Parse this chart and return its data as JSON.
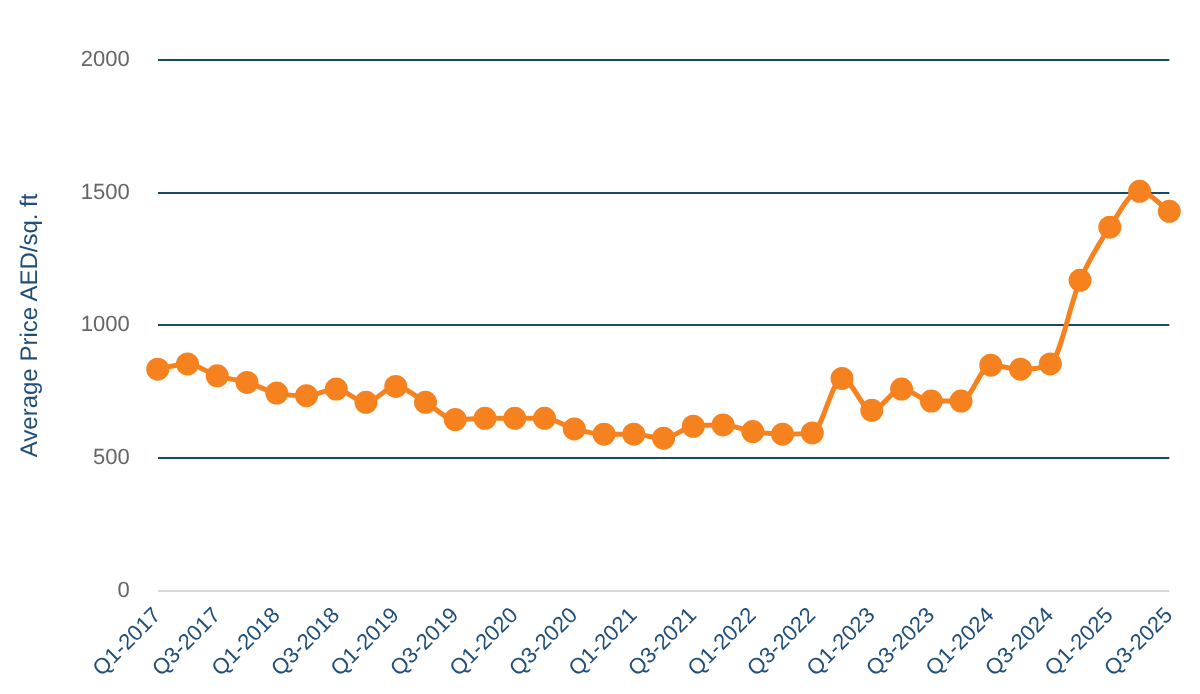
{
  "chart_data": {
    "type": "line",
    "ylabel": "Average Price AED/sq. ft",
    "categories": [
      "Q1-2017",
      null,
      "Q3-2017",
      null,
      "Q1-2018",
      null,
      "Q3-2018",
      null,
      "Q1-2019",
      null,
      "Q3-2019",
      null,
      "Q1-2020",
      null,
      "Q3-2020",
      null,
      "Q1-2021",
      null,
      "Q3-2021",
      null,
      "Q1-2022",
      null,
      "Q3-2022",
      null,
      "Q1-2023",
      null,
      "Q3-2023",
      null,
      "Q1-2024",
      null,
      "Q3-2024",
      null,
      "Q1-2025",
      null,
      "Q3-2025"
    ],
    "series": [
      {
        "color": "#f5821f",
        "values": [
          835,
          855,
          810,
          785,
          745,
          735,
          760,
          710,
          770,
          710,
          645,
          650,
          650,
          650,
          610,
          590,
          590,
          575,
          620,
          625,
          600,
          590,
          595,
          800,
          680,
          760,
          715,
          715,
          850,
          835,
          855,
          1170,
          1370,
          1505,
          1430
        ]
      }
    ],
    "ylim": [
      0,
      2000
    ],
    "yticks": [
      0,
      500,
      1000,
      1500,
      2000
    ],
    "grid": "y",
    "legend": false,
    "marker": "circle",
    "line_style": "solid"
  }
}
